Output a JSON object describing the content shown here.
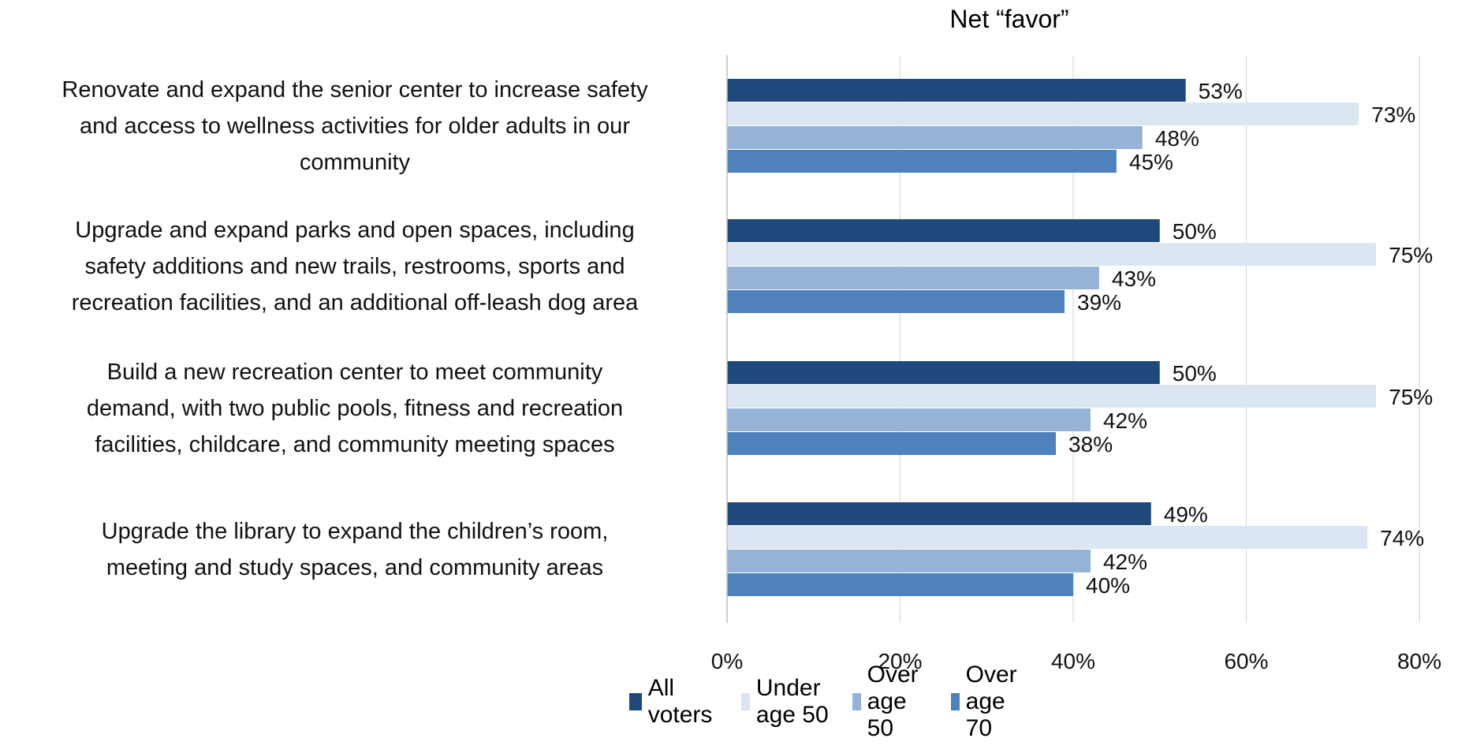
{
  "chart_data": {
    "type": "bar",
    "orientation": "horizontal",
    "title": "Net “favor”",
    "xlabel": "",
    "ylabel": "",
    "xlim": [
      0,
      80
    ],
    "x_ticks": [
      "0%",
      "20%",
      "40%",
      "60%",
      "80%"
    ],
    "grid": "vertical",
    "legend_position": "bottom",
    "categories": [
      "Renovate and expand the senior center to increase safety and access to wellness activities for older adults in our community",
      "Upgrade and expand parks and open spaces, including safety additions and new trails, restrooms, sports and recreation facilities, and an additional off-leash dog area",
      "Build a new recreation center to meet community demand, with two public pools, fitness and recreation facilities, childcare, and community meeting spaces",
      "Upgrade the library to expand the children’s room, meeting and study spaces, and community areas"
    ],
    "category_lines": [
      [
        "Renovate and expand the senior center to increase safety",
        "and access to wellness activities for older adults in our",
        "community"
      ],
      [
        "Upgrade and expand parks and open spaces, including",
        "safety additions and new trails, restrooms, sports and",
        "recreation facilities, and an additional off-leash dog area"
      ],
      [
        "Build a new recreation center to meet community",
        "demand, with two public pools, fitness and recreation",
        "facilities, childcare, and community meeting spaces"
      ],
      [
        "Upgrade the library to expand the children’s room,",
        "meeting and study spaces, and community areas"
      ]
    ],
    "series": [
      {
        "name": "All voters",
        "color": "#1f497d",
        "values": [
          53,
          50,
          50,
          49
        ],
        "labels": [
          "53%",
          "50%",
          "50%",
          "49%"
        ]
      },
      {
        "name": "Under age 50",
        "color": "#dce6f2",
        "values": [
          73,
          75,
          75,
          74
        ],
        "labels": [
          "73%",
          "75%",
          "75%",
          "74%"
        ]
      },
      {
        "name": "Over age 50",
        "color": "#95b3d7",
        "values": [
          48,
          43,
          42,
          42
        ],
        "labels": [
          "48%",
          "43%",
          "42%",
          "42%"
        ]
      },
      {
        "name": "Over age 70",
        "color": "#4f81bd",
        "values": [
          45,
          39,
          38,
          40
        ],
        "labels": [
          "45%",
          "39%",
          "38%",
          "40%"
        ]
      }
    ]
  }
}
